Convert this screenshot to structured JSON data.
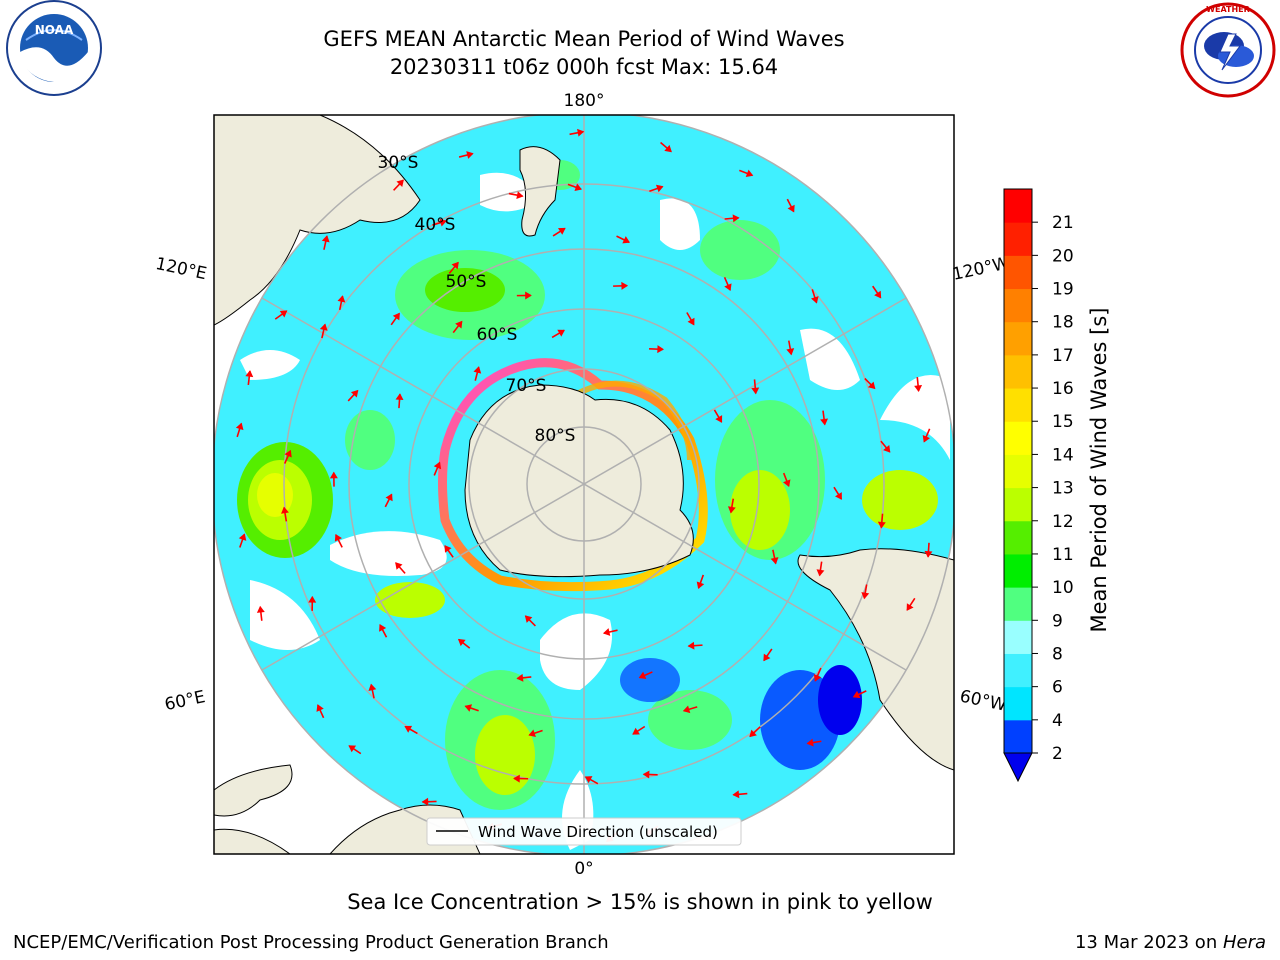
{
  "title": {
    "line1": "GEFS MEAN Antarctic Mean Period of Wind Waves",
    "line2": "20230311 t06z 000h fcst   Max: 15.64"
  },
  "footnote": "Sea Ice Concentration > 15% is shown in pink to yellow",
  "footer": {
    "left": "NCEP/EMC/Verification Post Processing Product Generation Branch",
    "date": "13 Mar 2023 on ",
    "machine": "Hera"
  },
  "logos": {
    "left": {
      "name": "NOAA",
      "ring_text": "NATIONAL OCEANIC AND ATMOSPHERIC ADMINISTRATION · U.S. DEPARTMENT OF COMMERCE"
    },
    "right": {
      "name": "NATIONAL WEATHER SERVICE"
    }
  },
  "map": {
    "projection": "south-polar-stereographic",
    "longitude_labels": {
      "top": "180°",
      "bottom": "0°",
      "upper_left": "120°E",
      "upper_right": "120°W",
      "lower_left": "60°E",
      "lower_right": "60°W"
    },
    "latitude_labels": [
      "30°S",
      "40°S",
      "50°S",
      "60°S",
      "70°S",
      "80°S"
    ],
    "legend": "Wind Wave Direction (unscaled)",
    "colors": {
      "land": "#eeecdc",
      "sea_ice": "#ff44dd",
      "arrow": "#ff0000",
      "grid": "#b0b0b0"
    }
  },
  "colorbar": {
    "label": "Mean Period of Wind Waves [s]",
    "ticks": [
      "2",
      "4",
      "6",
      "8",
      "9",
      "10",
      "11",
      "12",
      "13",
      "14",
      "15",
      "16",
      "17",
      "18",
      "19",
      "20",
      "21"
    ],
    "colors": [
      "#0040ff",
      "#00e5ff",
      "#40f0ff",
      "#99ffff",
      "#50ff80",
      "#00ee00",
      "#55ee00",
      "#bbff00",
      "#e6ff00",
      "#ffff00",
      "#ffe000",
      "#ffc000",
      "#ffa000",
      "#ff8000",
      "#ff5500",
      "#ff2000",
      "#ff0000"
    ],
    "under_color": "#0000ee",
    "extend": "min"
  }
}
